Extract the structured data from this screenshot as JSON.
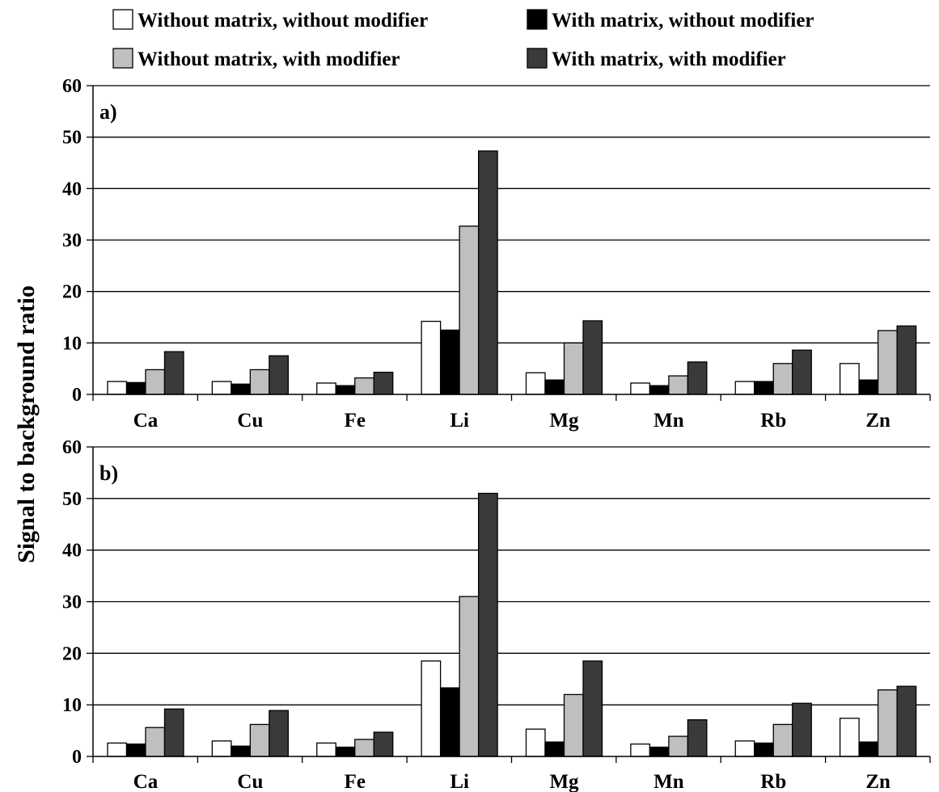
{
  "chart_data": {
    "type": "bar",
    "ylabel": "Signal to background ratio",
    "ylim": [
      0,
      60
    ],
    "yticks": [
      0,
      10,
      20,
      30,
      40,
      50,
      60
    ],
    "grid": true,
    "legend": {
      "placement": "top",
      "entries": [
        {
          "name": "Without matrix, without modifier",
          "color": "#ffffff"
        },
        {
          "name": "With matrix, without modifier",
          "color": "#000000"
        },
        {
          "name": "Without matrix, with modifier",
          "color": "#bfbfbf"
        },
        {
          "name": "With matrix, with modifier",
          "color": "#3a3a3a"
        }
      ]
    },
    "panels": [
      {
        "label": "a)",
        "categories": [
          "Ca",
          "Cu",
          "Fe",
          "Li",
          "Mg",
          "Mn",
          "Rb",
          "Zn"
        ],
        "series": [
          {
            "name": "Without matrix, without modifier",
            "values": [
              2.5,
              2.5,
              2.2,
              14.2,
              4.2,
              2.2,
              2.5,
              6.0
            ]
          },
          {
            "name": "With matrix, without modifier",
            "values": [
              2.3,
              2.0,
              1.7,
              12.5,
              2.8,
              1.7,
              2.5,
              2.8
            ]
          },
          {
            "name": "Without matrix, with modifier",
            "values": [
              4.8,
              4.8,
              3.2,
              32.7,
              10.0,
              3.6,
              6.0,
              12.4
            ]
          },
          {
            "name": "With matrix, with modifier",
            "values": [
              8.3,
              7.5,
              4.3,
              47.3,
              14.3,
              6.3,
              8.6,
              13.3
            ]
          }
        ]
      },
      {
        "label": "b)",
        "categories": [
          "Ca",
          "Cu",
          "Fe",
          "Li",
          "Mg",
          "Mn",
          "Rb",
          "Zn"
        ],
        "series": [
          {
            "name": "Without matrix, without modifier",
            "values": [
              2.6,
              3.0,
              2.6,
              18.5,
              5.3,
              2.4,
              3.0,
              7.4
            ]
          },
          {
            "name": "With matrix, without modifier",
            "values": [
              2.4,
              2.0,
              1.8,
              13.3,
              2.8,
              1.8,
              2.6,
              2.8
            ]
          },
          {
            "name": "Without matrix, with modifier",
            "values": [
              5.6,
              6.2,
              3.3,
              31.0,
              12.0,
              3.9,
              6.2,
              12.9
            ]
          },
          {
            "name": "With matrix, with modifier",
            "values": [
              9.2,
              8.9,
              4.7,
              51.0,
              18.5,
              7.1,
              10.3,
              13.6
            ]
          }
        ]
      }
    ]
  }
}
